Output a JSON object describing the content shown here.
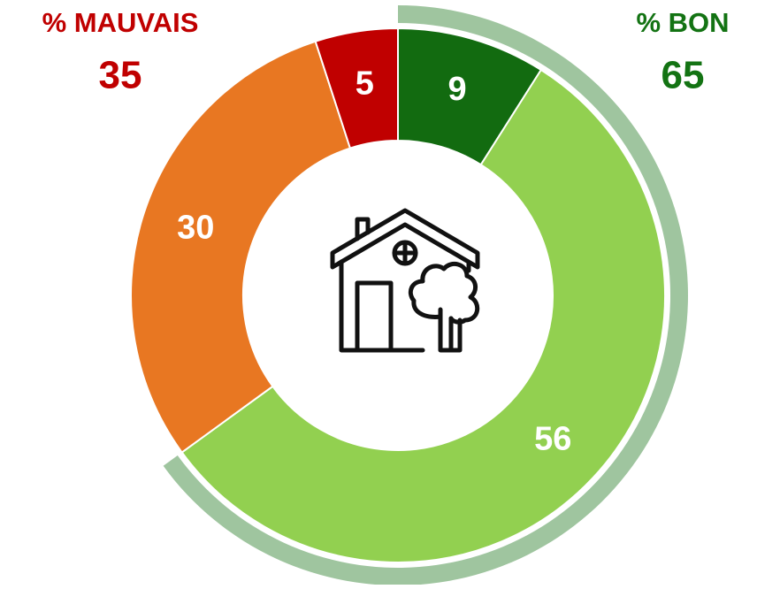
{
  "chart_data": {
    "type": "donut",
    "values": [
      9,
      56,
      30,
      5
    ],
    "colors": [
      "#126b10",
      "#92d050",
      "#e87722",
      "#c00000"
    ],
    "groups": [
      {
        "name": "% BON",
        "value": 65,
        "color": "#137313",
        "ring_color": "#9fc59f"
      },
      {
        "name": "% MAUVAIS",
        "value": 35,
        "color": "#c00000"
      }
    ]
  }
}
